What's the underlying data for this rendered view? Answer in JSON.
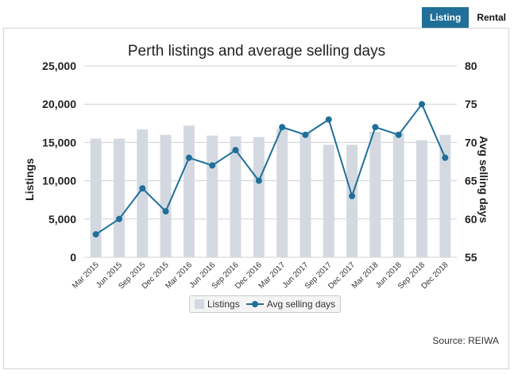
{
  "tabs": [
    {
      "label": "Listing",
      "active": true
    },
    {
      "label": "Rental",
      "active": false
    }
  ],
  "source": "Source: REIWA",
  "colors": {
    "bar": "#d4d9e1",
    "line": "#1f6f98",
    "tab_active": "#1f6f98",
    "grid": "#d0d0d0"
  },
  "chart_data": {
    "type": "bar",
    "title": "Perth listings and average selling days",
    "categories": [
      "Mar 2015",
      "Jun 2015",
      "Sep 2015",
      "Dec 2015",
      "Mar 2016",
      "Jun 2016",
      "Sep 2016",
      "Dec 2016",
      "Mar 2017",
      "Jun 2017",
      "Sep 2017",
      "Dec 2017",
      "Mar 2018",
      "Jun 2018",
      "Sep 2018",
      "Dec 2018"
    ],
    "ylabel": "Listings",
    "y2label": "Avg selling days",
    "ylim": [
      0,
      25000
    ],
    "y2lim": [
      55,
      80
    ],
    "yticks": [
      "0",
      "5,000",
      "10,000",
      "15,000",
      "20,000",
      "25,000"
    ],
    "y2ticks": [
      "55",
      "60",
      "65",
      "70",
      "75",
      "80"
    ],
    "grid": true,
    "legend": "bottom-center",
    "series": [
      {
        "name": "Listings",
        "type": "bar",
        "axis": "left",
        "values": [
          15500,
          15500,
          16700,
          16000,
          17200,
          15900,
          15800,
          15700,
          16800,
          16200,
          14700,
          14700,
          16400,
          16300,
          15300,
          16000
        ]
      },
      {
        "name": "Avg selling days",
        "type": "line",
        "axis": "right",
        "values": [
          58,
          60,
          64,
          61,
          68,
          67,
          69,
          65,
          72,
          71,
          73,
          63,
          72,
          71,
          75,
          68
        ]
      }
    ]
  }
}
